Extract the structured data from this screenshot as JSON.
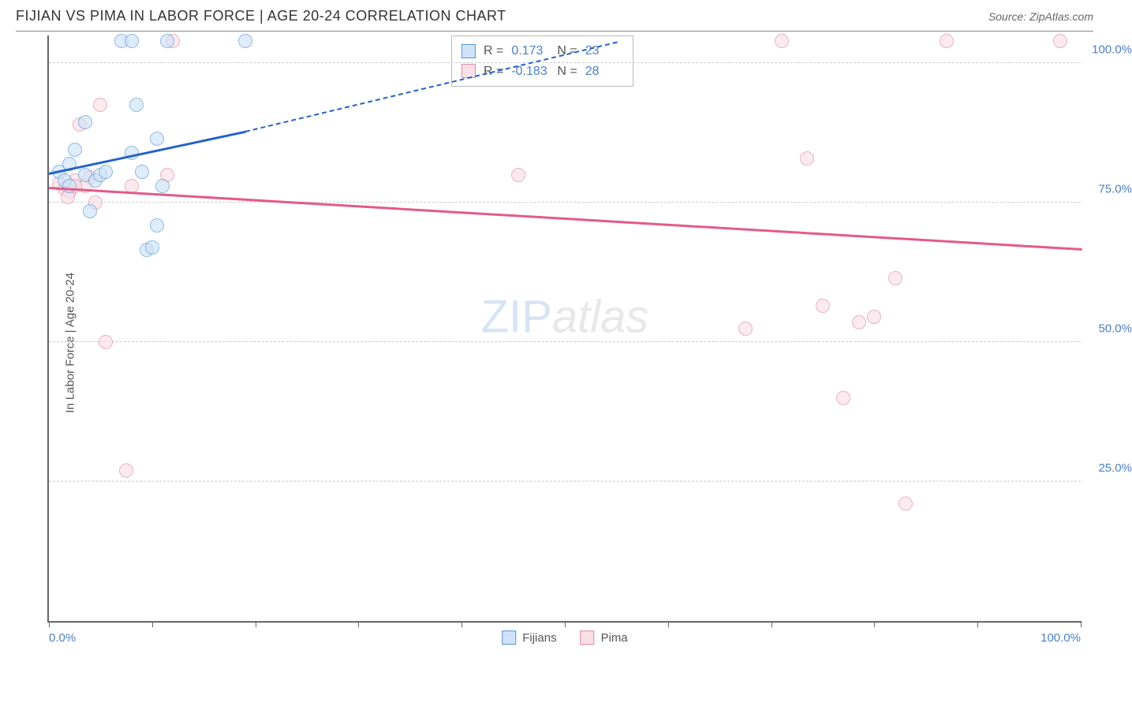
{
  "header": {
    "title": "FIJIAN VS PIMA IN LABOR FORCE | AGE 20-24 CORRELATION CHART",
    "source": "Source: ZipAtlas.com"
  },
  "chart": {
    "type": "scatter",
    "y_axis_title": "In Labor Force | Age 20-24",
    "xlim": [
      0,
      100
    ],
    "ylim": [
      0,
      105
    ],
    "x_tick_count": 11,
    "x_min_label": "0.0%",
    "x_max_label": "100.0%",
    "y_gridlines": [
      25,
      50,
      75,
      100
    ],
    "y_tick_labels": [
      "25.0%",
      "50.0%",
      "75.0%",
      "100.0%"
    ],
    "grid_color": "#cccccc",
    "axis_color": "#666666",
    "label_color": "#4a7fc9",
    "point_radius": 9,
    "series": {
      "fijians": {
        "label": "Fijians",
        "fill_color": "#cfe2f8",
        "stroke_color": "#5a94d6",
        "fill_opacity": 0.65,
        "points": [
          [
            1.0,
            80.5
          ],
          [
            1.5,
            79.0
          ],
          [
            2.0,
            82.0
          ],
          [
            2.0,
            78.0
          ],
          [
            2.5,
            84.5
          ],
          [
            3.5,
            80.0
          ],
          [
            3.5,
            89.5
          ],
          [
            4.0,
            73.5
          ],
          [
            4.5,
            79.0
          ],
          [
            5.0,
            80.0
          ],
          [
            7.0,
            104.0
          ],
          [
            8.0,
            104.0
          ],
          [
            8.5,
            92.5
          ],
          [
            9.0,
            80.5
          ],
          [
            9.5,
            66.5
          ],
          [
            10.0,
            67.0
          ],
          [
            10.5,
            86.5
          ],
          [
            10.5,
            71.0
          ],
          [
            11.5,
            104.0
          ],
          [
            11.0,
            78.0
          ],
          [
            19.0,
            104.0
          ],
          [
            8.0,
            84.0
          ],
          [
            5.5,
            80.5
          ]
        ],
        "trend": {
          "x1": 0,
          "y1": 80.5,
          "x2": 19,
          "y2": 88.0,
          "x2_dashed": 55,
          "y2_dashed": 104,
          "color": "#2462c9"
        }
      },
      "pima": {
        "label": "Pima",
        "fill_color": "#f9dfe6",
        "stroke_color": "#e08aa5",
        "fill_opacity": 0.65,
        "points": [
          [
            1.0,
            78.5
          ],
          [
            1.5,
            77.5
          ],
          [
            2.0,
            77.0
          ],
          [
            2.5,
            79.0
          ],
          [
            3.0,
            89.0
          ],
          [
            4.0,
            79.5
          ],
          [
            4.5,
            75.0
          ],
          [
            5.0,
            92.5
          ],
          [
            5.5,
            50.0
          ],
          [
            7.5,
            27.0
          ],
          [
            8.0,
            78.0
          ],
          [
            11.5,
            80.0
          ],
          [
            12.0,
            104.0
          ],
          [
            45.5,
            80.0
          ],
          [
            67.5,
            52.5
          ],
          [
            71.0,
            104.0
          ],
          [
            73.5,
            83.0
          ],
          [
            75.0,
            56.5
          ],
          [
            77.0,
            40.0
          ],
          [
            78.5,
            53.5
          ],
          [
            80.0,
            54.5
          ],
          [
            82.0,
            61.5
          ],
          [
            83.0,
            21.0
          ],
          [
            87.0,
            104.0
          ],
          [
            98.0,
            104.0
          ],
          [
            3.5,
            78.0
          ],
          [
            2.5,
            78.0
          ],
          [
            1.8,
            76.0
          ]
        ],
        "trend": {
          "x1": 0,
          "y1": 78.0,
          "x2": 100,
          "y2": 67.0,
          "color": "#e35a8a"
        }
      }
    },
    "stats_legend": {
      "rows": [
        {
          "series": "fijians",
          "r_label": "R =",
          "r_value": "0.173",
          "n_label": "N =",
          "n_value": "23"
        },
        {
          "series": "pima",
          "r_label": "R =",
          "r_value": "-0.183",
          "n_label": "N =",
          "n_value": "28"
        }
      ]
    },
    "watermark": {
      "part1": "ZIP",
      "part2": "atlas"
    }
  }
}
